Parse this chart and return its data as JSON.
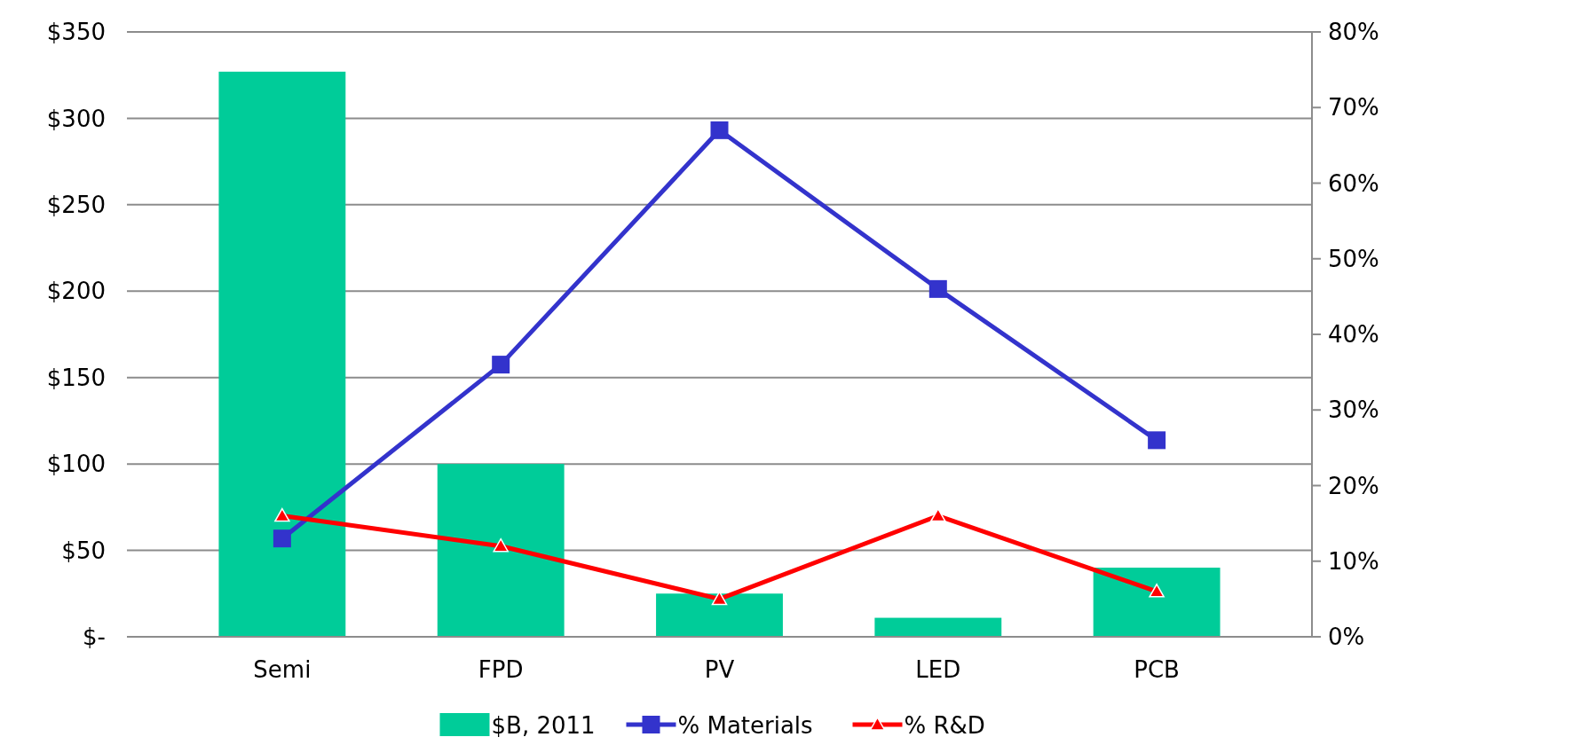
{
  "chart_data": {
    "type": "bar",
    "categories": [
      "Semi",
      "FPD",
      "PV",
      "LED",
      "PCB"
    ],
    "series": [
      {
        "name": "$B, 2011",
        "color": "#00cc99",
        "values": [
          327,
          100,
          25,
          11,
          40
        ]
      },
      {
        "name": "% Materials",
        "type": "line",
        "axis": "y2",
        "color": "#3333cc",
        "marker": "square",
        "values": [
          13,
          36,
          67,
          46,
          26
        ]
      },
      {
        "name": "% R&D",
        "type": "line",
        "axis": "y2",
        "color": "#ff0000",
        "marker": "triangle",
        "values": [
          16,
          12,
          5,
          16,
          6
        ]
      }
    ],
    "ylim": [
      0,
      350
    ],
    "yticks": [
      {
        "value": 0,
        "label": "$-"
      },
      {
        "value": 50,
        "label": "$50"
      },
      {
        "value": 100,
        "label": "$100"
      },
      {
        "value": 150,
        "label": "$150"
      },
      {
        "value": 200,
        "label": "$200"
      },
      {
        "value": 250,
        "label": "$250"
      },
      {
        "value": 300,
        "label": "$300"
      },
      {
        "value": 350,
        "label": "$350"
      }
    ],
    "y2lim": [
      0,
      80
    ],
    "y2ticks": [
      {
        "value": 0,
        "label": "0%"
      },
      {
        "value": 10,
        "label": "10%"
      },
      {
        "value": 20,
        "label": "20%"
      },
      {
        "value": 30,
        "label": "30%"
      },
      {
        "value": 40,
        "label": "40%"
      },
      {
        "value": 50,
        "label": "50%"
      },
      {
        "value": 60,
        "label": "60%"
      },
      {
        "value": 70,
        "label": "70%"
      },
      {
        "value": 80,
        "label": "80%"
      }
    ],
    "grid": "y",
    "legend": "bottom"
  }
}
